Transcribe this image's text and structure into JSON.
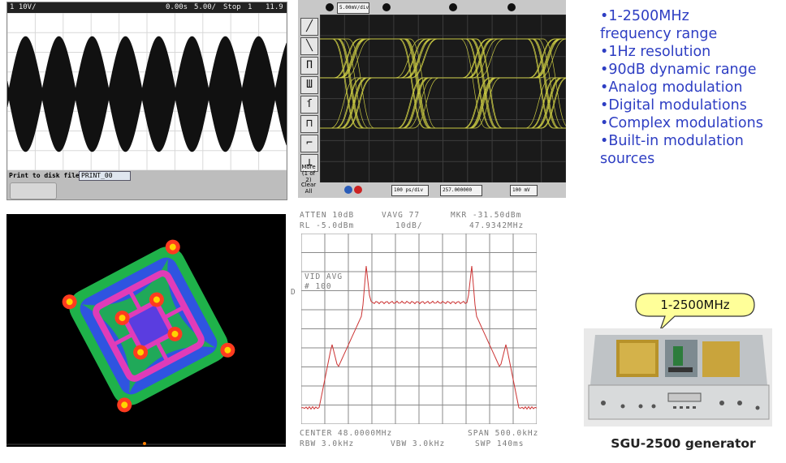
{
  "scope_am": {
    "channel_scale": "1 10V/",
    "time_delay": "0.00s",
    "time_scale": "5.00/",
    "mode": "Stop",
    "trigger": "1",
    "level": "11.9",
    "print_label": "Print to disk file:",
    "file_name": "PRINT_00"
  },
  "scope_eye": {
    "scale_top": "5.00mV/div",
    "time_base": "100 ps/div",
    "delay": "257.000000 ps",
    "offset": "100 mV",
    "side_text_1": "More (1 of 2)",
    "side_text_2": "Clear All"
  },
  "spectrum": {
    "atten": "ATTEN 10dB",
    "vavg": "VAVG 77",
    "mkr": "MKR -31.50dBm",
    "rl": "RL -5.0dBm",
    "scale": "10dB/",
    "mkr_freq": "47.9342MHz",
    "vid_avg": "VID AVG",
    "avg_count": "# 100",
    "marker_letter": "D",
    "center": "CENTER 48.0000MHz",
    "span": "SPAN 500.0kHz",
    "rbw": "RBW 3.0kHz",
    "vbw": "VBW 3.0kHz",
    "swp": "SWP 140ms"
  },
  "features": [
    "•1-2500MHz",
    "frequency range",
    "•1Hz resolution",
    "•90dB dynamic range",
    "•Analog modulation",
    "•Digital modulations",
    "•Complex modulations",
    "•Built-in modulation",
    "sources"
  ],
  "callout_text": "1-2500MHz",
  "caption": "SGU-2500 generator",
  "colors": {
    "feature_text": "#2e3ec3",
    "callout_fill": "#ffff99",
    "eye_trace": "#e8e84a",
    "spectrum_trace": "#cc3333"
  }
}
